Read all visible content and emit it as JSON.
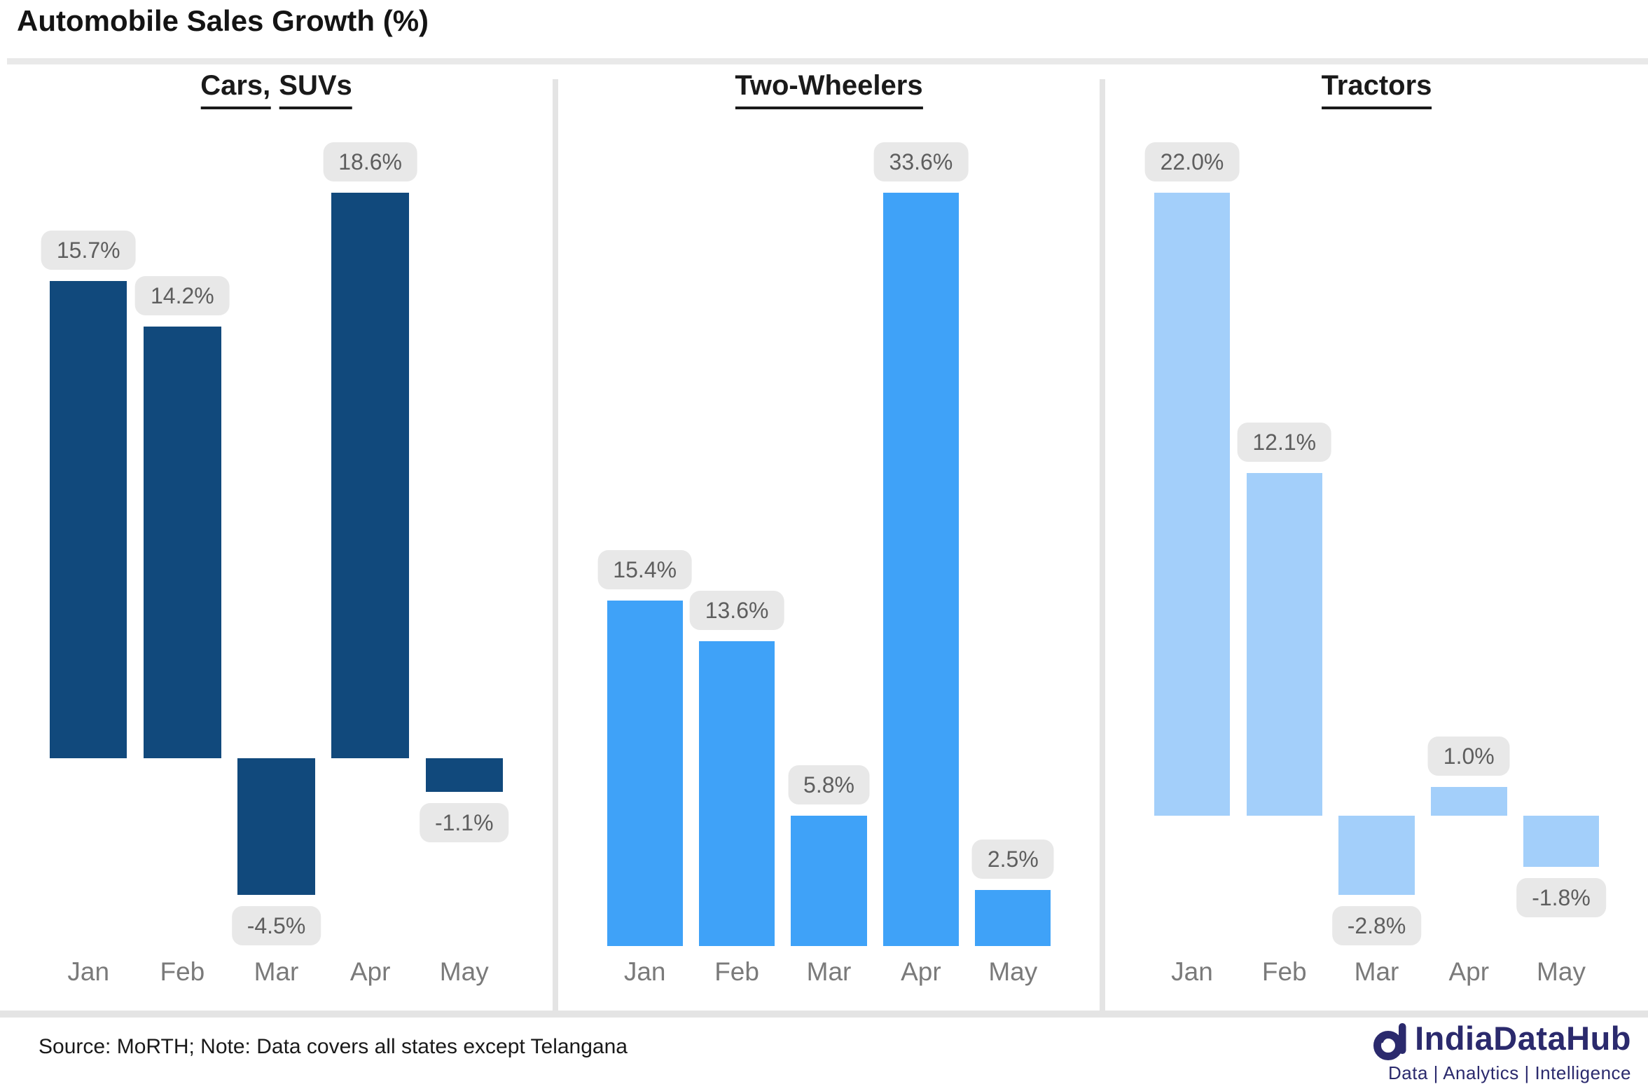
{
  "header": {
    "title": "Automobile Sales Growth (%)"
  },
  "chart_data": {
    "type": "bar",
    "title": "Automobile Sales Growth (%)",
    "categories": [
      "Jan",
      "Feb",
      "Mar",
      "Apr",
      "May"
    ],
    "grid": false,
    "legend": "none",
    "value_axis_visible": false,
    "panels": [
      {
        "title": "Cars, SUVs",
        "bar_color": "#11497C",
        "values": [
          15.7,
          14.2,
          -4.5,
          18.6,
          -1.1
        ],
        "labels": [
          "15.7%",
          "14.2%",
          "-4.5%",
          "18.6%",
          "-1.1%"
        ]
      },
      {
        "title": "Two-Wheelers",
        "bar_color": "#3FA2F8",
        "values": [
          15.4,
          13.6,
          5.8,
          33.6,
          2.5
        ],
        "labels": [
          "15.4%",
          "13.6%",
          "5.8%",
          "33.6%",
          "2.5%"
        ]
      },
      {
        "title": "Tractors",
        "bar_color": "#A3CFFA",
        "values": [
          22.0,
          12.1,
          -2.8,
          1.0,
          -1.8
        ],
        "labels": [
          "22.0%",
          "12.1%",
          "-2.8%",
          "1.0%",
          "-1.8%"
        ]
      }
    ],
    "label_style": {
      "pill_bg": "#E8E8E8",
      "pill_text": "#5E5E5E"
    },
    "axis_label_color": "#7A7A7A"
  },
  "footer": {
    "source_note": "Source: MoRTH; Note: Data covers all states except Telangana",
    "logo": {
      "name": "IndiaDataHub",
      "tagline": "Data | Analytics | Intelligence",
      "color": "#2B2A6D"
    }
  }
}
